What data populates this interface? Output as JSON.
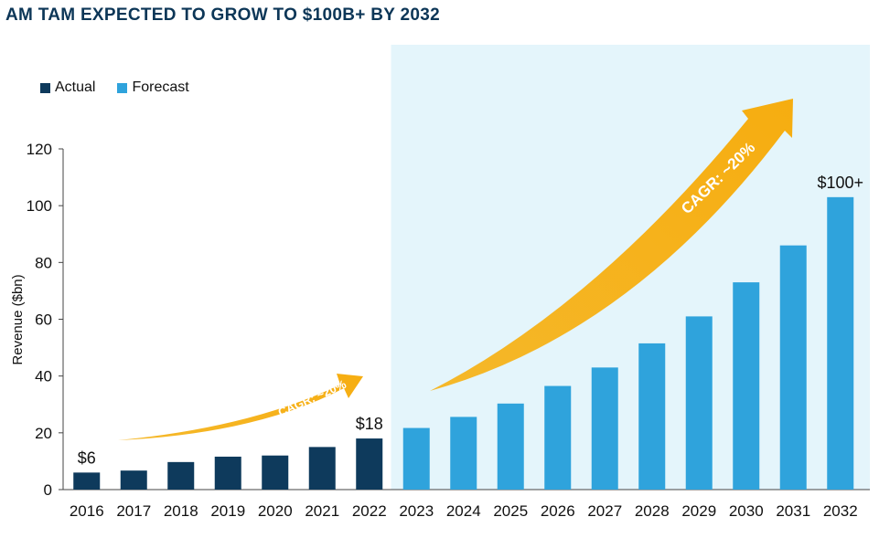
{
  "title": "AM TAM EXPECTED TO GROW TO $100B+ BY 2032",
  "legend": [
    {
      "label": "Actual",
      "color": "#0e3a5c"
    },
    {
      "label": "Forecast",
      "color": "#2fa3dc"
    }
  ],
  "chart_data": {
    "type": "bar",
    "title": "AM TAM EXPECTED TO GROW TO $100B+ BY 2032",
    "xlabel": "",
    "ylabel": "Revenue ($bn)",
    "ylim": [
      0,
      120
    ],
    "yticks": [
      0,
      20,
      40,
      60,
      80,
      100,
      120
    ],
    "categories": [
      "2016",
      "2017",
      "2018",
      "2019",
      "2020",
      "2021",
      "2022",
      "2023",
      "2024",
      "2025",
      "2026",
      "2027",
      "2028",
      "2029",
      "2030",
      "2031",
      "2032"
    ],
    "series": [
      {
        "name": "Actual",
        "color": "#0e3a5c",
        "values": [
          6,
          6.7,
          9.7,
          11.6,
          12,
          15,
          18,
          null,
          null,
          null,
          null,
          null,
          null,
          null,
          null,
          null,
          null
        ]
      },
      {
        "name": "Forecast",
        "color": "#2fa3dc",
        "values": [
          null,
          null,
          null,
          null,
          null,
          null,
          null,
          21.7,
          25.6,
          30.3,
          36.5,
          43,
          51.5,
          61,
          73,
          86,
          103
        ]
      }
    ],
    "data_labels": [
      {
        "category": "2016",
        "text": "$6"
      },
      {
        "category": "2022",
        "text": "$18"
      },
      {
        "category": "2032",
        "text": "$100+"
      }
    ],
    "annotations": [
      {
        "text": "CAGR: ~20%",
        "period": "2016-2022"
      },
      {
        "text": "CAGR: ~20%",
        "period": "2023-2032"
      }
    ],
    "forecast_shading": {
      "from": "2023",
      "to": "2032",
      "color": "#e4f5fb"
    }
  }
}
